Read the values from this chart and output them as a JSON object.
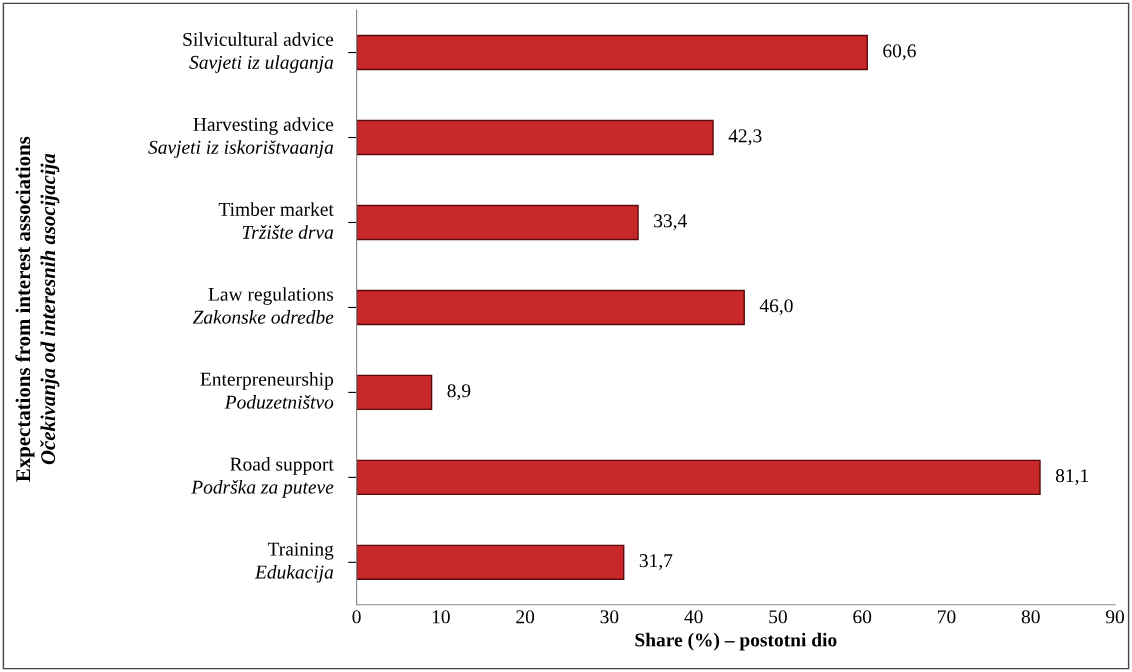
{
  "chart_data": {
    "type": "bar",
    "orientation": "horizontal",
    "categories": [
      "Silvicultural advice\nSavjeti iz ulaganja",
      "Harvesting advice\nSavjeti iz iskorištvaanja",
      "Timber market\nTržište drva",
      "Law regulations\nZakonske odredbe",
      "Enterpreneurship\nPoduzetništvo",
      "Road support\nPodrška za puteve",
      "Training\nEdukacija"
    ],
    "values": [
      60.6,
      42.3,
      33.4,
      46.0,
      8.9,
      81.1,
      31.7
    ],
    "value_labels": [
      "60,6",
      "42,3",
      "33,4",
      "46,0",
      "8,9",
      "81,1",
      "31,7"
    ],
    "color": "#c8282a",
    "xlim": [
      0,
      90
    ],
    "xticks": [
      0,
      10,
      20,
      30,
      40,
      50,
      60,
      70,
      80,
      90
    ],
    "xlabel": "Share (%) – postotni dio",
    "ylabel": "Expectations from interest associations\nOčekivanja od interesnih asocijacija",
    "grid": false,
    "legend": false
  }
}
